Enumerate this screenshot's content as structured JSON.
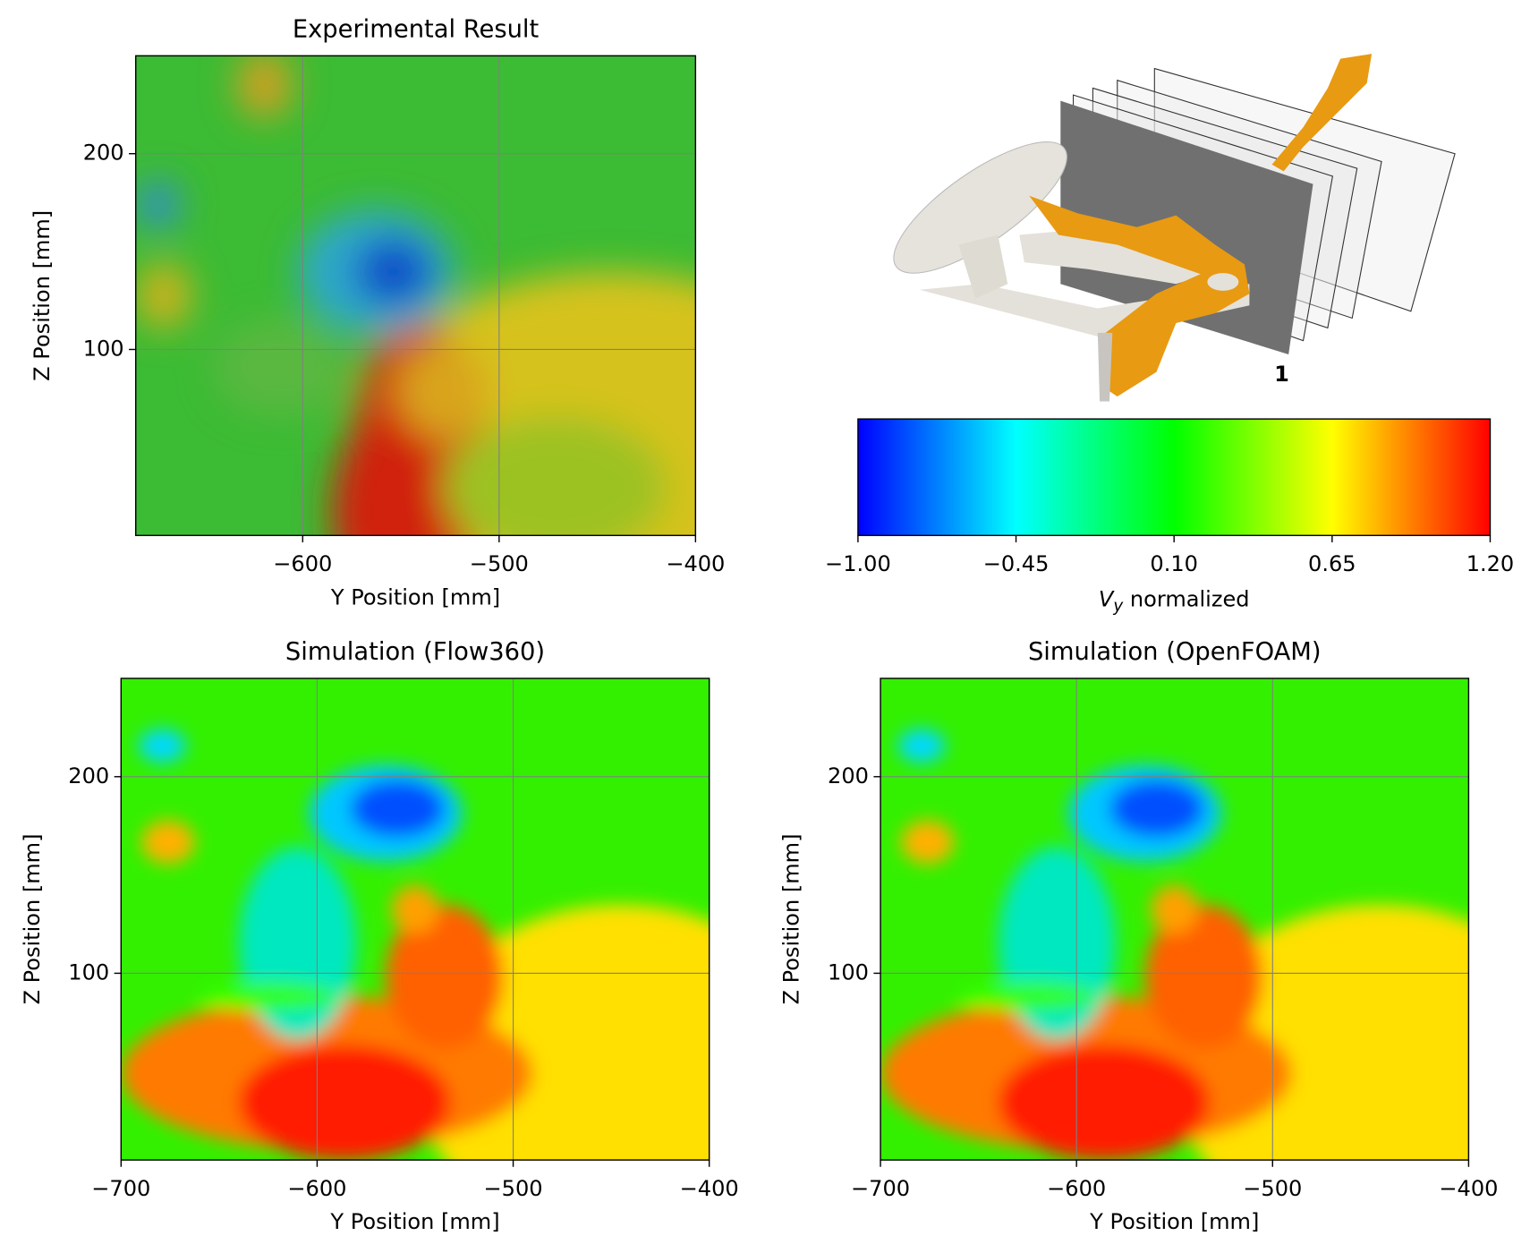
{
  "chart_data": [
    {
      "type": "contour",
      "title": "Experimental Result",
      "xlabel": "Y Position [mm]",
      "ylabel": "Z Position [mm]",
      "xlim": [
        -685,
        -400
      ],
      "ylim": [
        5,
        250
      ],
      "xticks": [
        {
          "value": -600,
          "label": "−600"
        },
        {
          "value": -500,
          "label": "−500"
        },
        {
          "value": -400,
          "label": "−400"
        }
      ],
      "yticks": [
        100,
        200
      ],
      "grid": true
    },
    {
      "type": "render",
      "annotation": "1"
    },
    {
      "type": "colorbar",
      "xlabel": [
        "V",
        "y",
        " normalized"
      ],
      "xlim": [
        -1,
        1.2
      ],
      "xticks": [
        {
          "value": -1,
          "label": "−1.00"
        },
        {
          "value": -0.45,
          "label": "−0.45"
        },
        {
          "value": 0.1,
          "label": "0.10"
        },
        {
          "value": 0.65,
          "label": "0.65"
        },
        {
          "value": 1.2,
          "label": "1.20"
        }
      ],
      "colors": [
        "#0000ff",
        "#00ffff",
        "#00ff00",
        "#ffff00",
        "#ff0000"
      ]
    },
    {
      "type": "contour",
      "title": "Simulation (Flow360)",
      "xlabel": "Y Position [mm]",
      "ylabel": "Z Position [mm]",
      "xlim": [
        -700,
        -400
      ],
      "ylim": [
        5,
        250
      ],
      "xticks": [
        {
          "value": -700,
          "label": "−700"
        },
        {
          "value": -600,
          "label": "−600"
        },
        {
          "value": -500,
          "label": "−500"
        },
        {
          "value": -400,
          "label": "−400"
        }
      ],
      "yticks": [
        100,
        200
      ],
      "grid": true
    },
    {
      "type": "contour",
      "title": "Simulation (OpenFOAM)",
      "xlabel": "Y Position [mm]",
      "ylabel": "Z Position [mm]",
      "xlim": [
        -700,
        -400
      ],
      "ylim": [
        5,
        250
      ],
      "xticks": [
        {
          "value": -700,
          "label": "−700"
        },
        {
          "value": -600,
          "label": "−600"
        },
        {
          "value": -500,
          "label": "−500"
        },
        {
          "value": -400,
          "label": "−400"
        }
      ],
      "yticks": [
        100,
        200
      ],
      "grid": true
    }
  ]
}
